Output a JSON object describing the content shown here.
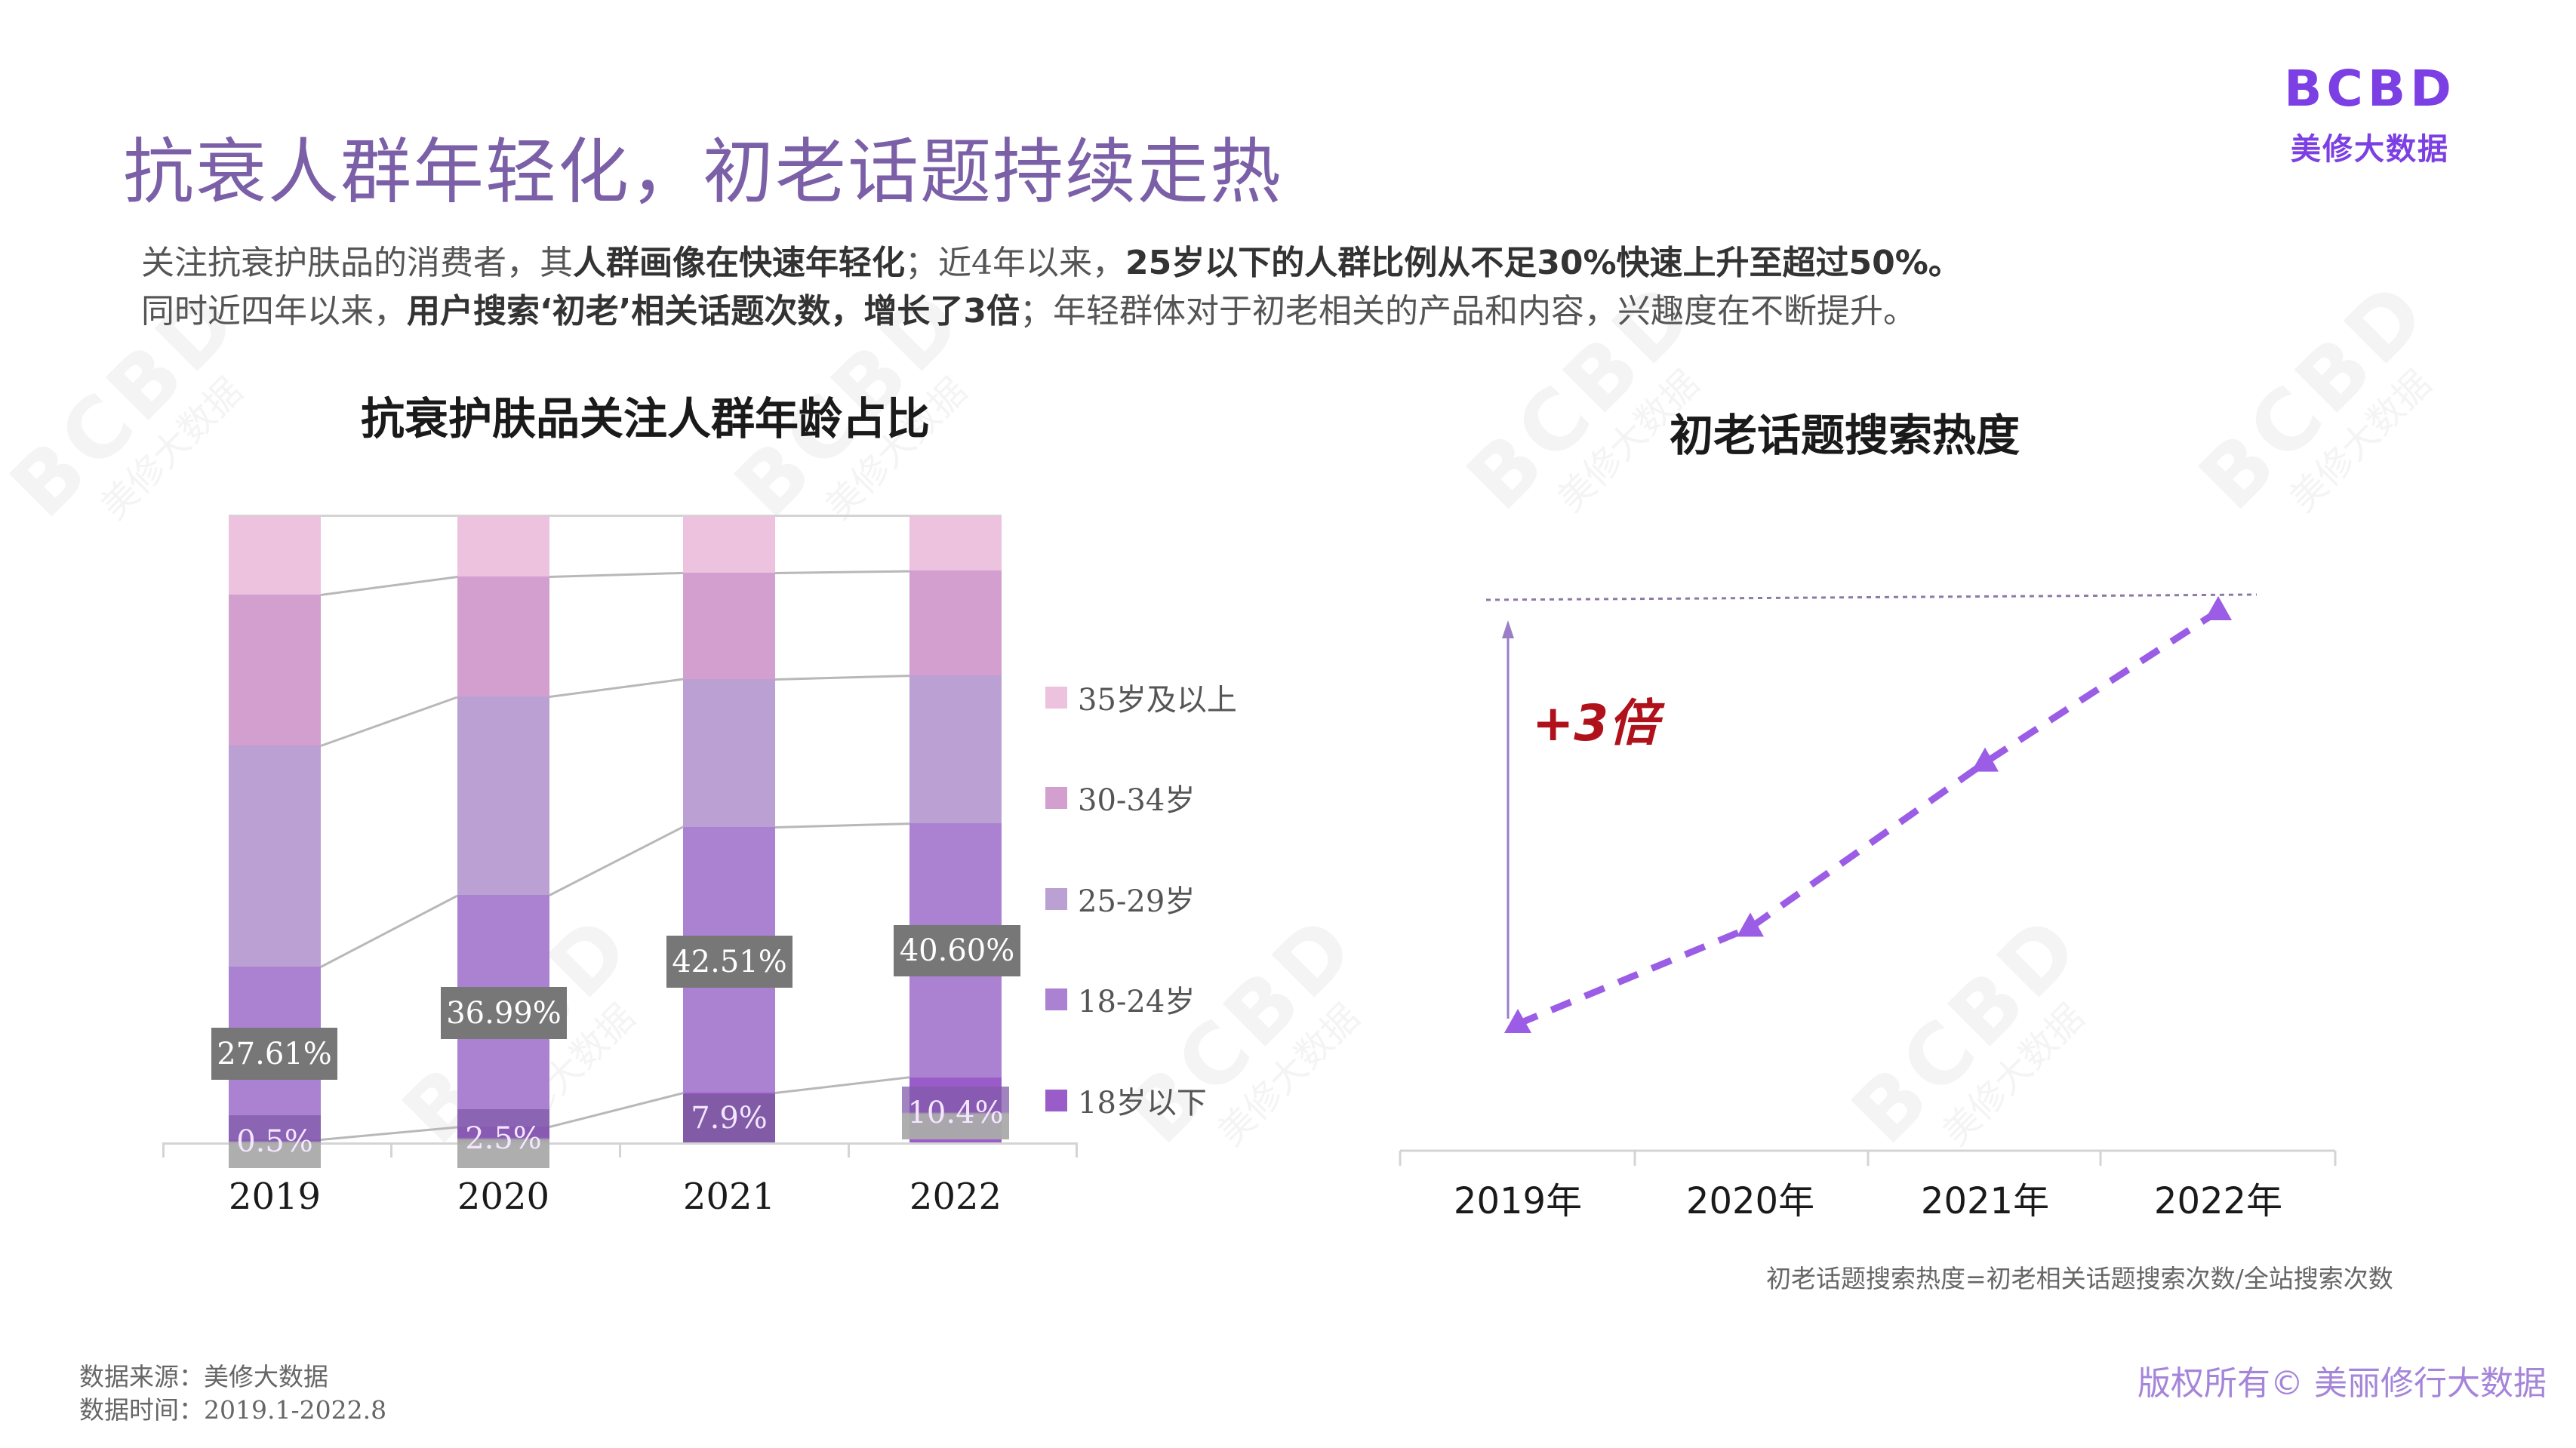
{
  "header": {
    "title": "抗衰人群年轻化，初老话题持续走热",
    "logo_mark": "BCBD",
    "logo_sub": "美修大数据"
  },
  "summary": {
    "line1": [
      {
        "text": "关注抗衰护肤品的消费者，其",
        "bold": false
      },
      {
        "text": "人群画像在快速年轻化",
        "bold": true
      },
      {
        "text": "；近4年以来，",
        "bold": false
      },
      {
        "text": "25岁以下的人群比例从不足30%快速上升至超过50%。",
        "bold": true
      }
    ],
    "line2": [
      {
        "text": "同时近四年以来，",
        "bold": false
      },
      {
        "text": "用户搜索‘初老’相关话题次数，增长了3倍",
        "bold": true
      },
      {
        "text": "；年轻群体对于初老相关的产品和内容，兴趣度在不断提升。",
        "bold": false
      }
    ]
  },
  "chart_data": [
    {
      "type": "bar",
      "stacked": true,
      "percent_stacked": true,
      "title": "抗衰护肤品关注人群年龄占比",
      "categories": [
        "2019",
        "2020",
        "2021",
        "2022"
      ],
      "xlabel": "",
      "ylabel": "",
      "ylim": [
        0,
        100
      ],
      "grid": false,
      "legend_position": "right",
      "series": [
        {
          "name": "18岁以下",
          "color": "#9a5cc8",
          "values": [
            0.5,
            2.5,
            7.9,
            10.4
          ],
          "labels": [
            "0.5%",
            "2.5%",
            "7.9%",
            "10.4%"
          ]
        },
        {
          "name": "18-24岁",
          "color": "#ab82d2",
          "values": [
            27.61,
            36.99,
            42.51,
            40.6
          ],
          "labels": [
            "27.61%",
            "36.99%",
            "42.51%",
            "40.60%"
          ]
        },
        {
          "name": "25-29岁",
          "color": "#bba0d3",
          "values": [
            35.3,
            31.7,
            23.6,
            23.6
          ]
        },
        {
          "name": "30-34岁",
          "color": "#d39fcf",
          "values": [
            24.1,
            19.2,
            17.0,
            16.7
          ]
        },
        {
          "name": "35岁及以上",
          "color": "#ecc2df",
          "values": [
            12.5,
            9.6,
            9.0,
            8.7
          ]
        }
      ]
    },
    {
      "type": "line",
      "title": "初老话题搜索热度",
      "categories": [
        "2019年",
        "2020年",
        "2021年",
        "2022年"
      ],
      "series": [
        {
          "name": "初老话题搜索热度",
          "color": "#9b5de5",
          "style": "dashed",
          "marker": "triangle",
          "values": [
            1.0,
            1.7,
            2.9,
            4.0
          ]
        }
      ],
      "annotations": [
        "+3倍"
      ],
      "note": "初老话题搜索热度=初老相关话题搜索次数/全站搜索次数",
      "yaxis_visible": false,
      "grid": false
    }
  ],
  "footer": {
    "source": "数据来源：美修大数据",
    "period": "数据时间：2019.1-2022.8",
    "copyright": "版权所有© 美丽修行大数据"
  },
  "colors": {
    "title": "#7b60a8",
    "accent": "#9b5de5",
    "annotation": "#b0121b",
    "label_box": "#777777"
  },
  "watermark": {
    "mark": "BCBD",
    "text": "美修大数据"
  }
}
